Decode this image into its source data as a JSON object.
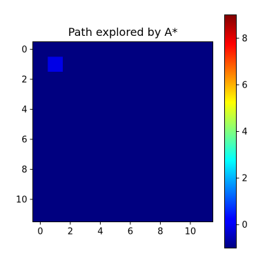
{
  "chart_data": {
    "type": "heatmap",
    "title": "Path explored by A*",
    "rows": 12,
    "cols": 12,
    "default_value": -1,
    "cells": [
      {
        "row": 1,
        "col": 1,
        "value": 0
      }
    ],
    "x_ticks": [
      0,
      2,
      4,
      6,
      8,
      10
    ],
    "y_ticks": [
      0,
      2,
      4,
      6,
      8,
      10
    ],
    "colormap": "jet",
    "color_range": [
      -1,
      9
    ],
    "colorbar_ticks": [
      0,
      2,
      4,
      6,
      8
    ],
    "xlabel": "",
    "ylabel": ""
  }
}
